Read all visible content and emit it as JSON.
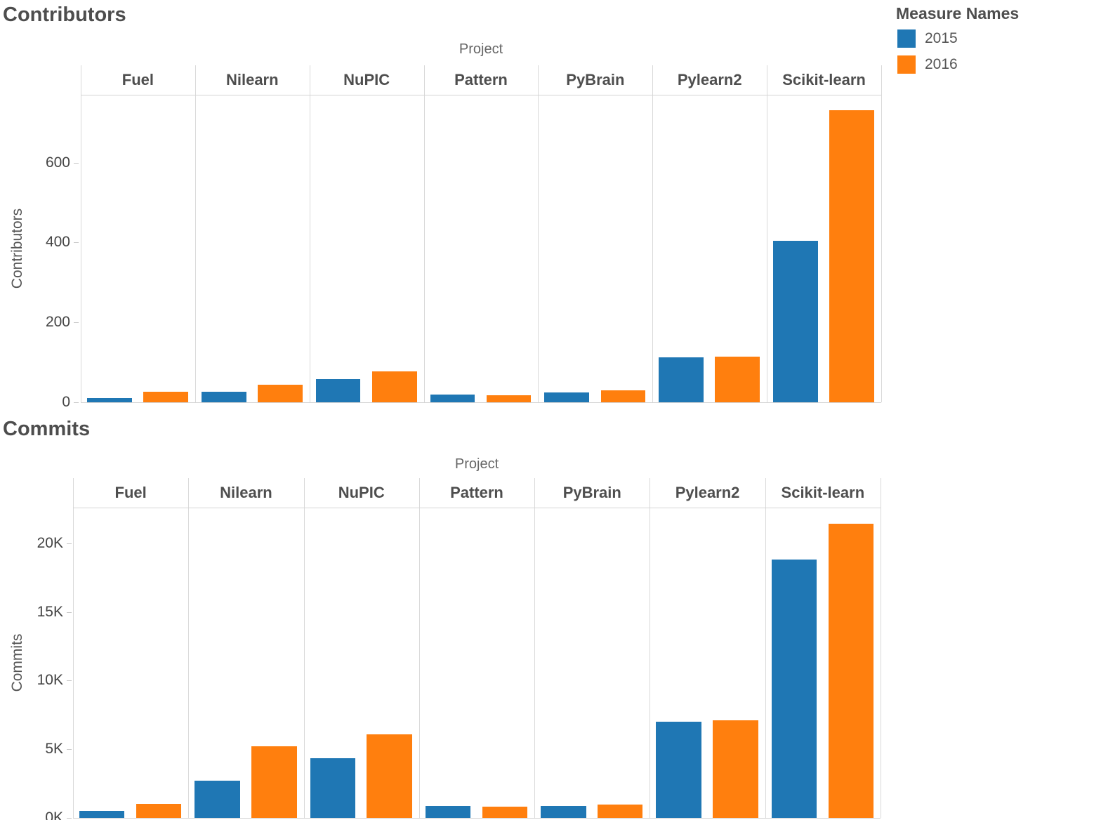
{
  "legend": {
    "title": "Measure Names",
    "items": [
      {
        "label": "2015",
        "color": "#1F77B4"
      },
      {
        "label": "2016",
        "color": "#FF7F0E"
      }
    ]
  },
  "chart_data": [
    {
      "type": "bar",
      "title": "Contributors",
      "col_axis_title": "Project",
      "ylabel": "Contributors",
      "ylim": [
        0,
        770
      ],
      "grid": false,
      "legend_position": "top-right",
      "yticks": [
        {
          "v": 0,
          "label": "0"
        },
        {
          "v": 200,
          "label": "200"
        },
        {
          "v": 400,
          "label": "400"
        },
        {
          "v": 600,
          "label": "600"
        }
      ],
      "categories": [
        "Fuel",
        "Nilearn",
        "NuPIC",
        "Pattern",
        "PyBrain",
        "Pylearn2",
        "Scikit-learn"
      ],
      "series": [
        {
          "name": "2015",
          "color": "#1F77B4",
          "values": [
            10,
            26,
            58,
            19,
            25,
            112,
            404
          ]
        },
        {
          "name": "2016",
          "color": "#FF7F0E",
          "values": [
            26,
            44,
            77,
            18,
            30,
            114,
            732
          ]
        }
      ]
    },
    {
      "type": "bar",
      "title": "Commits",
      "col_axis_title": "Project",
      "ylabel": "Commits",
      "ylim": [
        0,
        22600
      ],
      "grid": false,
      "legend_position": "top-right",
      "yticks": [
        {
          "v": 0,
          "label": "0K"
        },
        {
          "v": 5000,
          "label": "5K"
        },
        {
          "v": 10000,
          "label": "10K"
        },
        {
          "v": 15000,
          "label": "15K"
        },
        {
          "v": 20000,
          "label": "20K"
        }
      ],
      "categories": [
        "Fuel",
        "Nilearn",
        "NuPIC",
        "Pattern",
        "PyBrain",
        "Pylearn2",
        "Scikit-learn"
      ],
      "series": [
        {
          "name": "2015",
          "color": "#1F77B4",
          "values": [
            500,
            2700,
            4350,
            870,
            870,
            7000,
            18800
          ]
        },
        {
          "name": "2016",
          "color": "#FF7F0E",
          "values": [
            1000,
            5200,
            6100,
            820,
            950,
            7100,
            21400
          ]
        }
      ]
    }
  ]
}
